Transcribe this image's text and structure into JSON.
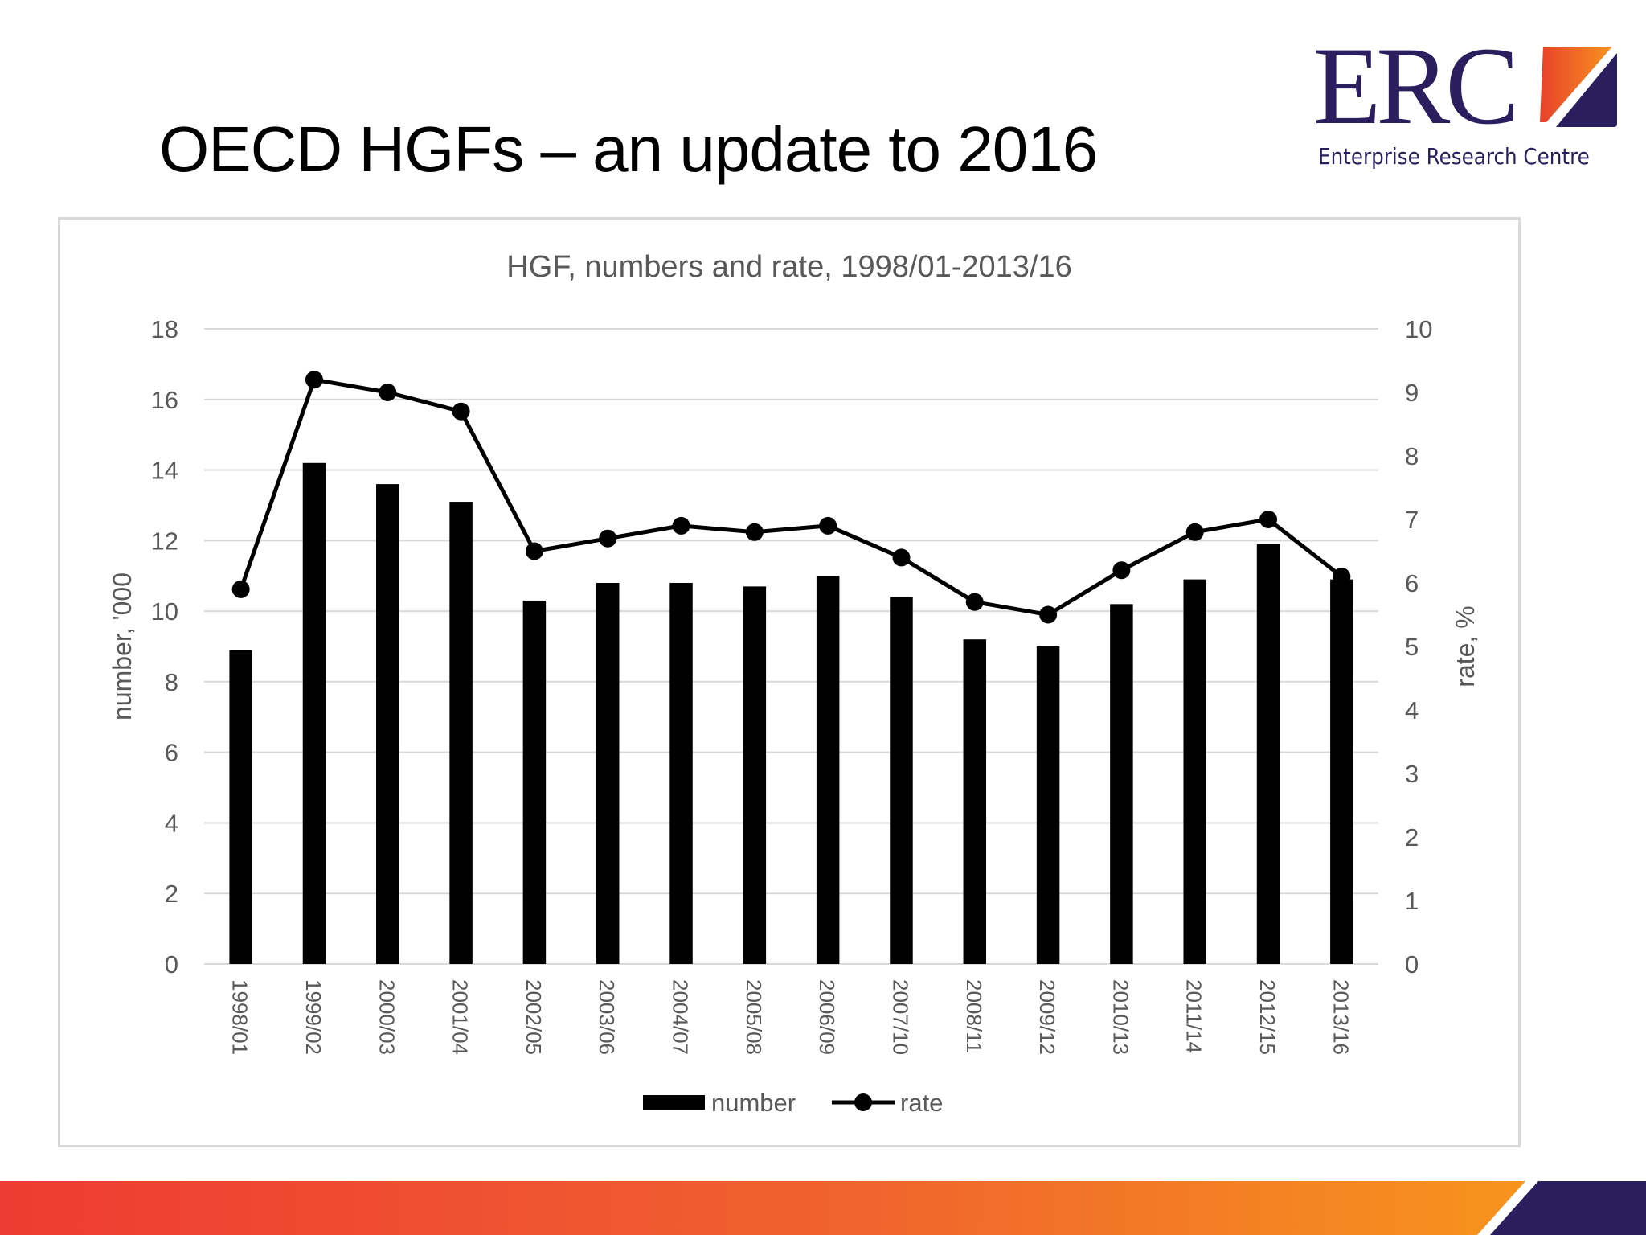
{
  "slide": {
    "title": "OECD HGFs – an update to 2016"
  },
  "logo": {
    "wordmark": "ERC",
    "subtitle": "Enterprise Research Centre"
  },
  "colors": {
    "bar": "#000000",
    "line": "#000000",
    "gridline": "#D9D9D9",
    "axis_text": "#595959",
    "logo_navy": "#2B1E5F",
    "gradient_start": "#EE3B33",
    "gradient_end": "#F7941D"
  },
  "chart_data": {
    "type": "bar+line",
    "title": "HGF, numbers and rate, 1998/01-2013/16",
    "xlabel": "",
    "ylabel": "number, '000",
    "y2label": "rate, %",
    "ylim": [
      0,
      18
    ],
    "y2lim": [
      0,
      10
    ],
    "yticks": [
      0,
      2,
      4,
      6,
      8,
      10,
      12,
      14,
      16,
      18
    ],
    "y2ticks": [
      0,
      1,
      2,
      3,
      4,
      5,
      6,
      7,
      8,
      9,
      10
    ],
    "grid": true,
    "legend_position": "bottom",
    "categories": [
      "1998/01",
      "1999/02",
      "2000/03",
      "2001/04",
      "2002/05",
      "2003/06",
      "2004/07",
      "2005/08",
      "2006/09",
      "2007/10",
      "2008/11",
      "2009/12",
      "2010/13",
      "2011/14",
      "2012/15",
      "2013/16"
    ],
    "series": [
      {
        "name": "number",
        "type": "bar",
        "axis": "left",
        "values": [
          8.9,
          14.2,
          13.6,
          13.1,
          10.3,
          10.8,
          10.8,
          10.7,
          11.0,
          10.4,
          9.2,
          9.0,
          10.2,
          10.9,
          11.9,
          10.9
        ]
      },
      {
        "name": "rate",
        "type": "line",
        "marker": "circle",
        "axis": "right",
        "values": [
          5.9,
          9.2,
          9.0,
          8.7,
          6.5,
          6.7,
          6.9,
          6.8,
          6.9,
          6.4,
          5.7,
          5.5,
          6.2,
          6.8,
          7.0,
          6.1
        ]
      }
    ]
  }
}
